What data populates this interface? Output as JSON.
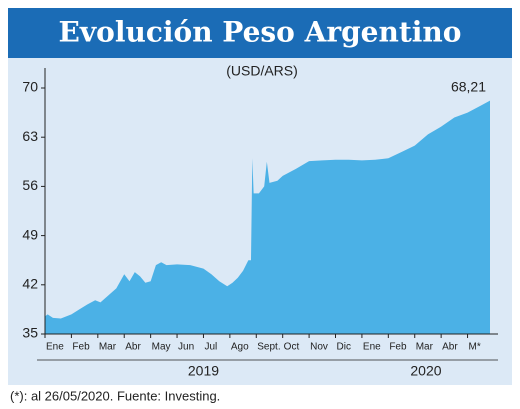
{
  "chart_data": {
    "type": "area",
    "title": "Evolución Peso Argentino",
    "subtitle": "(USD/ARS)",
    "color": "#4bb1e6",
    "x": [
      0,
      0.1,
      0.3,
      0.6,
      1.0,
      1.3,
      1.6,
      1.9,
      2.1,
      2.4,
      2.7,
      3.0,
      3.2,
      3.4,
      3.6,
      3.8,
      4.0,
      4.2,
      4.4,
      4.6,
      5.0,
      5.5,
      6.0,
      6.3,
      6.6,
      6.9,
      7.1,
      7.3,
      7.5,
      7.7,
      7.8,
      7.85,
      7.9,
      8.1,
      8.3,
      8.4,
      8.5,
      8.8,
      9.0,
      9.5,
      10.0,
      10.5,
      11.0,
      11.5,
      12.0,
      12.5,
      13.0,
      13.5,
      14.0,
      14.5,
      15.0,
      15.5,
      16.0,
      16.5,
      16.85
    ],
    "values": [
      37.5,
      37.8,
      37.3,
      37.2,
      37.8,
      38.5,
      39.2,
      39.8,
      39.5,
      40.5,
      41.5,
      43.5,
      42.5,
      43.8,
      43.2,
      42.3,
      42.5,
      44.8,
      45.2,
      44.8,
      44.9,
      44.8,
      44.3,
      43.5,
      42.5,
      41.8,
      42.3,
      43.0,
      44.0,
      45.5,
      45.5,
      60.0,
      55.0,
      55.0,
      56.0,
      59.5,
      56.5,
      56.8,
      57.5,
      58.5,
      59.6,
      59.7,
      59.8,
      59.8,
      59.7,
      59.8,
      60.0,
      60.9,
      61.8,
      63.4,
      64.5,
      65.8,
      66.5,
      67.5,
      68.21
    ],
    "value_labels": [
      null,
      null,
      null,
      null,
      null,
      null,
      null,
      null,
      null,
      null,
      null,
      null,
      null,
      null,
      null,
      null,
      null,
      null,
      null,
      null,
      null,
      null,
      null,
      null,
      null,
      null,
      null,
      null,
      null,
      null,
      null,
      null,
      null,
      null,
      null,
      null,
      null,
      null,
      null,
      null,
      null,
      null,
      null,
      null,
      null,
      null,
      null,
      null,
      null,
      null,
      null,
      null,
      null,
      null,
      "68,21"
    ],
    "xlim": [
      0,
      16.85
    ],
    "xticks": [
      {
        "value": 0,
        "label": "Ene"
      },
      {
        "value": 1,
        "label": "Feb"
      },
      {
        "value": 2,
        "label": "Mar"
      },
      {
        "value": 3,
        "label": "Abr"
      },
      {
        "value": 4,
        "label": "May"
      },
      {
        "value": 5,
        "label": "Jun"
      },
      {
        "value": 6,
        "label": "Jul"
      },
      {
        "value": 7,
        "label": "Ago"
      },
      {
        "value": 8,
        "label": "Sept."
      },
      {
        "value": 9,
        "label": "Oct"
      },
      {
        "value": 10,
        "label": "Nov"
      },
      {
        "value": 11,
        "label": "Dic"
      },
      {
        "value": 12,
        "label": "Ene"
      },
      {
        "value": 13,
        "label": "Feb"
      },
      {
        "value": 14,
        "label": "Mar"
      },
      {
        "value": 15,
        "label": "Abr"
      },
      {
        "value": 16,
        "label": "M*"
      }
    ],
    "year_labels": [
      "2019",
      "2020"
    ],
    "ylim": [
      35,
      70
    ],
    "yticks": [
      35,
      42,
      49,
      56,
      63,
      70
    ],
    "footnote": "(*): al 26/05/2020. Fuente: Investing."
  }
}
